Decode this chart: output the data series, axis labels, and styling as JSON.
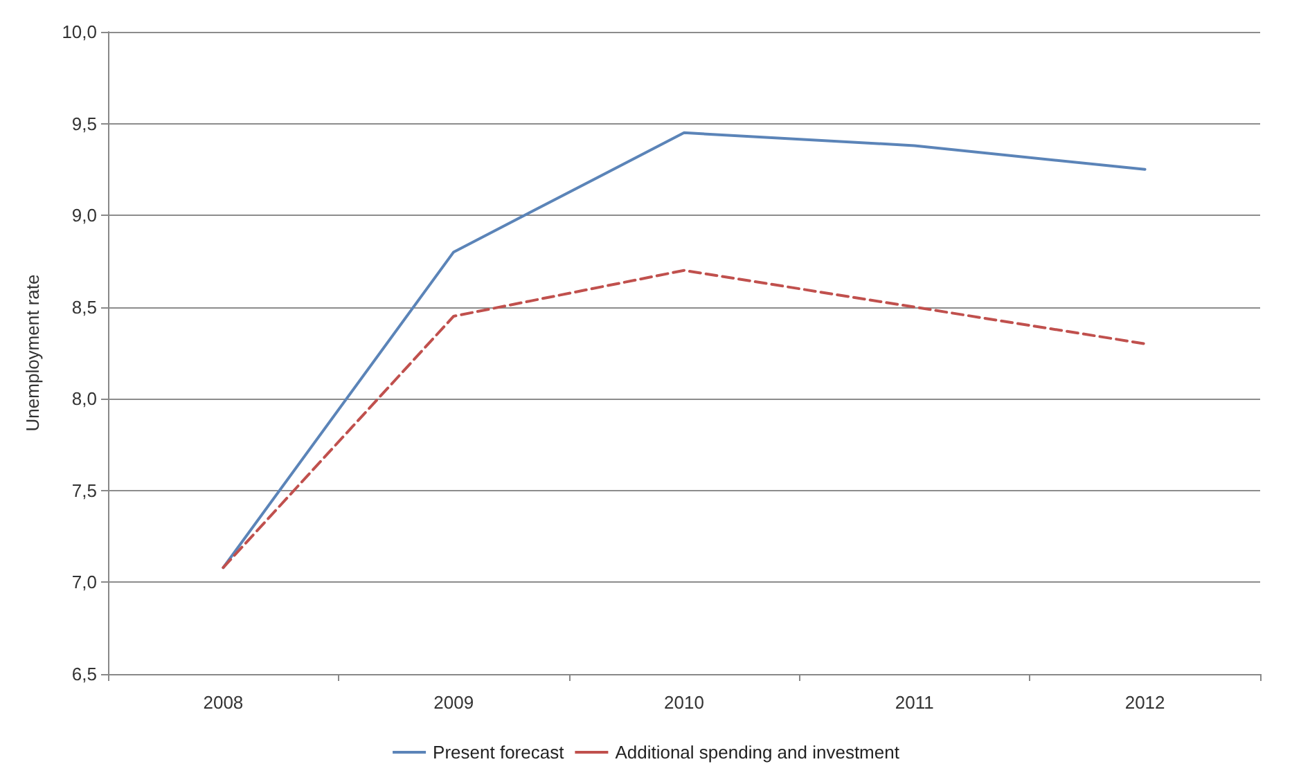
{
  "chart_data": {
    "type": "line",
    "ylabel": "Unemployment rate",
    "categories": [
      "2008",
      "2009",
      "2010",
      "2011",
      "2012"
    ],
    "series": [
      {
        "name": "Present forecast",
        "color": "#5b84b8",
        "values": [
          7.08,
          8.8,
          9.45,
          9.38,
          9.25
        ],
        "line_style": "solid"
      },
      {
        "name": "Additional spending and investment",
        "color": "#c0504d",
        "values": [
          7.08,
          8.45,
          8.7,
          8.5,
          8.3
        ],
        "line_style": "dashed"
      }
    ],
    "ylim": [
      6.5,
      10.0
    ],
    "yticks": [
      {
        "value": 6.5,
        "label": "6,5"
      },
      {
        "value": 7.0,
        "label": "7,0"
      },
      {
        "value": 7.5,
        "label": "7,5"
      },
      {
        "value": 8.0,
        "label": "8,0"
      },
      {
        "value": 8.5,
        "label": "8,5"
      },
      {
        "value": 9.0,
        "label": "9,0"
      },
      {
        "value": 9.5,
        "label": "9,5"
      },
      {
        "value": 10.0,
        "label": "10,0"
      }
    ],
    "grid": "y",
    "legend": "bottom",
    "marker": "none"
  }
}
